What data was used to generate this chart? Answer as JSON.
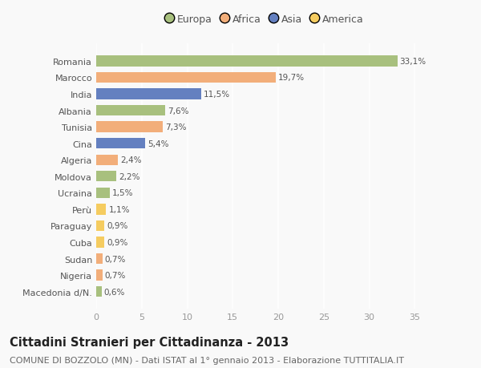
{
  "categories": [
    "Romania",
    "Marocco",
    "India",
    "Albania",
    "Tunisia",
    "Cina",
    "Algeria",
    "Moldova",
    "Ucraina",
    "Perù",
    "Paraguay",
    "Cuba",
    "Sudan",
    "Nigeria",
    "Macedonia d/N."
  ],
  "values": [
    33.1,
    19.7,
    11.5,
    7.6,
    7.3,
    5.4,
    2.4,
    2.2,
    1.5,
    1.1,
    0.9,
    0.9,
    0.7,
    0.7,
    0.6
  ],
  "labels": [
    "33,1%",
    "19,7%",
    "11,5%",
    "7,6%",
    "7,3%",
    "5,4%",
    "2,4%",
    "2,2%",
    "1,5%",
    "1,1%",
    "0,9%",
    "0,9%",
    "0,7%",
    "0,7%",
    "0,6%"
  ],
  "colors": [
    "#a8c07e",
    "#f2ae7a",
    "#6480c0",
    "#a8c07e",
    "#f2ae7a",
    "#6480c0",
    "#f2ae7a",
    "#a8c07e",
    "#a8c07e",
    "#f5cc60",
    "#f5cc60",
    "#f5cc60",
    "#f2ae7a",
    "#f2ae7a",
    "#a8c07e"
  ],
  "legend_labels": [
    "Europa",
    "Africa",
    "Asia",
    "America"
  ],
  "legend_colors": [
    "#a8c07e",
    "#f2ae7a",
    "#6480c0",
    "#f5cc60"
  ],
  "title": "Cittadini Stranieri per Cittadinanza - 2013",
  "subtitle": "COMUNE DI BOZZOLO (MN) - Dati ISTAT al 1° gennaio 2013 - Elaborazione TUTTITALIA.IT",
  "xlim": [
    0,
    37
  ],
  "xticks": [
    0,
    5,
    10,
    15,
    20,
    25,
    30,
    35
  ],
  "background_color": "#f9f9f9",
  "plot_bg_color": "#f9f9f9",
  "grid_color": "#ffffff",
  "bar_height": 0.65,
  "title_fontsize": 10.5,
  "subtitle_fontsize": 8,
  "label_fontsize": 7.5,
  "tick_fontsize": 8,
  "legend_fontsize": 9
}
